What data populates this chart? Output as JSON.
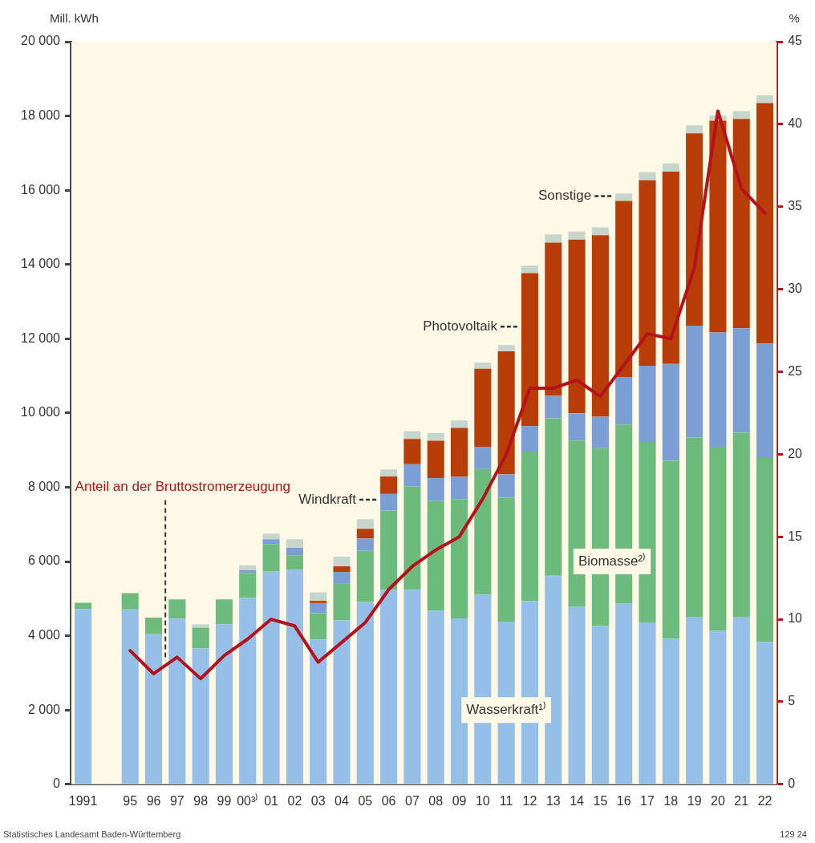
{
  "chart_data": {
    "type": "bar",
    "stacked": true,
    "ylabel": "Mill. kWh",
    "y2label": "%",
    "categories": [
      "1991",
      null,
      "95",
      "96",
      "97",
      "98",
      "99",
      "00³⁾",
      "01",
      "02",
      "03",
      "04",
      "05",
      "06",
      "07",
      "08",
      "09",
      "10",
      "11",
      "12",
      "13",
      "14",
      "15",
      "16",
      "17",
      "18",
      "19",
      "20",
      "21",
      "22"
    ],
    "series": [
      {
        "name": "Wasserkraft¹⁾",
        "color": "#96bfe8",
        "values": [
          4720,
          null,
          4710,
          4040,
          4460,
          3660,
          4310,
          5020,
          5730,
          5780,
          3900,
          4420,
          4910,
          5240,
          5240,
          4680,
          4470,
          5110,
          4380,
          4940,
          5620,
          4790,
          4260,
          4860,
          4360,
          3920,
          4510,
          4130,
          4510,
          3830
        ]
      },
      {
        "name": "Biomasse²⁾",
        "color": "#6cbb7c",
        "values": [
          170,
          null,
          440,
          450,
          520,
          560,
          670,
          670,
          740,
          390,
          710,
          980,
          1380,
          2130,
          2780,
          2950,
          3210,
          3380,
          3340,
          4020,
          4240,
          4470,
          4790,
          4830,
          4860,
          4790,
          4830,
          4960,
          4960,
          4960
        ]
      },
      {
        "name": "Windkraft",
        "color": "#7b9fd4",
        "values": [
          null,
          null,
          null,
          null,
          null,
          null,
          null,
          80,
          130,
          200,
          270,
          320,
          330,
          450,
          600,
          620,
          600,
          600,
          630,
          690,
          600,
          730,
          850,
          1280,
          2050,
          2610,
          3010,
          3080,
          2810,
          3080
        ]
      },
      {
        "name": "Photovoltaik",
        "color": "#b83d08",
        "values": [
          null,
          null,
          null,
          null,
          null,
          null,
          null,
          null,
          null,
          null,
          60,
          150,
          260,
          470,
          680,
          1000,
          1320,
          2100,
          3310,
          4120,
          4130,
          4680,
          4890,
          4740,
          5000,
          5180,
          5180,
          5700,
          5640,
          6480
        ]
      },
      {
        "name": "Sonstige",
        "color": "#c6d6cc",
        "values": [
          null,
          null,
          null,
          null,
          null,
          90,
          null,
          130,
          150,
          230,
          230,
          260,
          260,
          190,
          210,
          210,
          200,
          170,
          170,
          200,
          220,
          220,
          210,
          200,
          220,
          220,
          220,
          150,
          210,
          210
        ]
      },
      {
        "name": "Anteil an der Bruttostromerzeugung",
        "type": "line",
        "axis": "y2",
        "color": "#b5121b",
        "values": [
          null,
          null,
          8.1,
          6.7,
          7.7,
          6.4,
          7.8,
          8.8,
          10.0,
          9.6,
          7.4,
          8.6,
          9.8,
          11.8,
          13.2,
          14.2,
          15.0,
          17.3,
          20.0,
          24.0,
          24.0,
          24.5,
          23.5,
          25.4,
          27.3,
          27.0,
          31.3,
          40.8,
          36.1,
          34.6
        ]
      }
    ],
    "ylim": [
      0,
      20000
    ],
    "yticks": [
      0,
      {
        "value": 2000,
        "label": "2 000"
      },
      {
        "value": 4000,
        "label": "4 000"
      },
      {
        "value": 6000,
        "label": "6 000"
      },
      {
        "value": 8000,
        "label": "8 000"
      },
      {
        "value": 10000,
        "label": "10 000"
      },
      {
        "value": 12000,
        "label": "12 000"
      },
      {
        "value": 14000,
        "label": "14 000"
      },
      {
        "value": 16000,
        "label": "16 000"
      },
      {
        "value": 18000,
        "label": "18 000"
      },
      {
        "value": 20000,
        "label": "20 000"
      }
    ],
    "y2lim": [
      0,
      45
    ],
    "y2ticks": [
      0,
      5,
      10,
      15,
      20,
      25,
      30,
      35,
      40,
      45
    ],
    "legend": false,
    "marker": "none",
    "line_style": "solid",
    "annotations": [
      "Statistisches Landesamt Baden-Württemberg",
      "129 24"
    ]
  }
}
